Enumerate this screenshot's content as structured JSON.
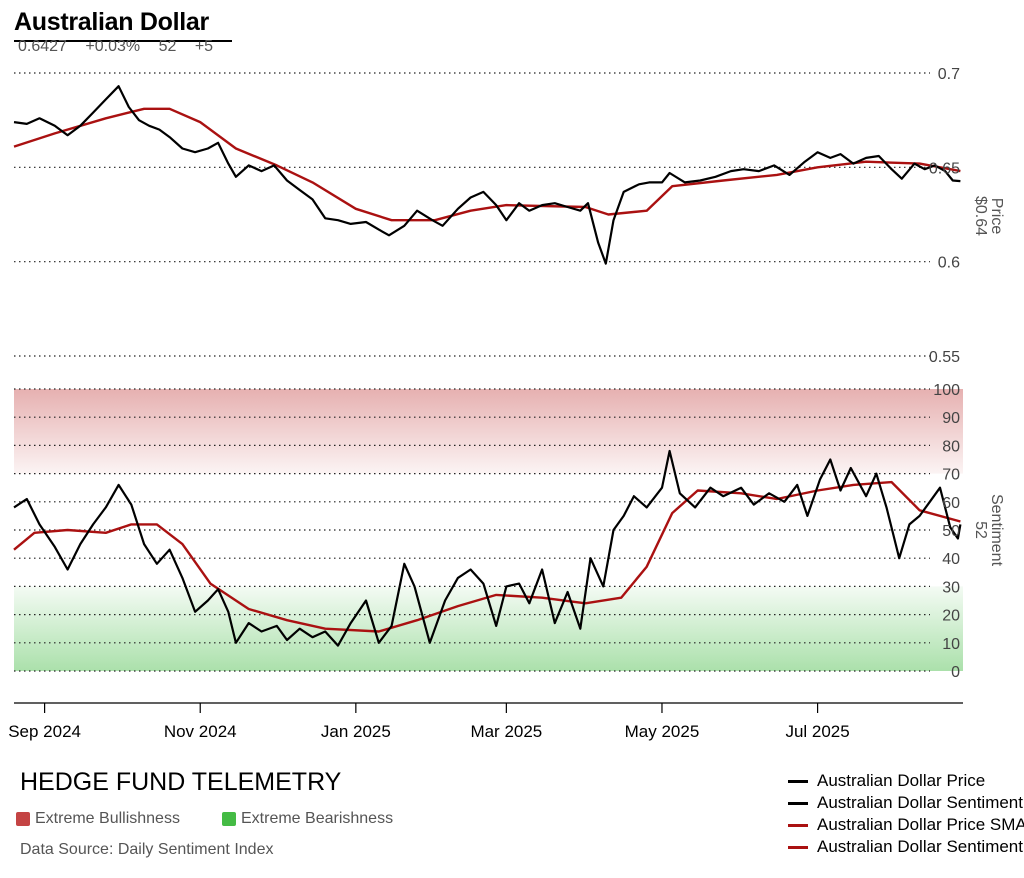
{
  "header": {
    "title": "Australian Dollar",
    "last_price": "0.6427",
    "change_pct": "+0.03%",
    "sentiment": "52",
    "sentiment_change": "+5"
  },
  "footer": {
    "brand": "HEDGE FUND TELEMETRY",
    "bull_zone_label": "Extreme Bullishness",
    "bear_zone_label": "Extreme Bearishness",
    "source": "Data Source: Daily Sentiment Index"
  },
  "colors": {
    "price": "#000000",
    "sentiment": "#000000",
    "price_sma": "#aa1111",
    "sentiment_sma": "#aa1111",
    "bull_zone": "#c44444",
    "bear_zone": "#44bb44"
  },
  "chart_data": [
    {
      "type": "line",
      "title": "Australian Dollar",
      "ylabel": "Price",
      "ylabel_value": "$0.64",
      "ylim": [
        0.55,
        0.7
      ],
      "yticks": [
        0.55,
        0.6,
        0.65,
        0.7
      ],
      "ytick_labels": [
        "0.55",
        "0.6",
        "0.65",
        "0.7"
      ],
      "xlim": [
        "2024-08-20",
        "2025-08-27"
      ],
      "xticks": [
        "2024-09-01",
        "2024-11-01",
        "2025-01-01",
        "2025-03-01",
        "2025-05-01",
        "2025-07-01"
      ],
      "xtick_labels": [
        "Sep 2024",
        "Nov 2024",
        "Jan 2025",
        "Mar 2025",
        "May 2025",
        "Jul 2025"
      ],
      "grid": "horizontal dotted",
      "series": [
        {
          "name": "Australian Dollar Price",
          "color": "#000000",
          "points": [
            [
              "2024-08-20",
              0.674
            ],
            [
              "2024-08-25",
              0.673
            ],
            [
              "2024-08-30",
              0.676
            ],
            [
              "2024-09-05",
              0.672
            ],
            [
              "2024-09-10",
              0.667
            ],
            [
              "2024-09-15",
              0.672
            ],
            [
              "2024-09-20",
              0.679
            ],
            [
              "2024-09-25",
              0.686
            ],
            [
              "2024-09-30",
              0.693
            ],
            [
              "2024-10-04",
              0.682
            ],
            [
              "2024-10-08",
              0.675
            ],
            [
              "2024-10-12",
              0.672
            ],
            [
              "2024-10-16",
              0.67
            ],
            [
              "2024-10-20",
              0.666
            ],
            [
              "2024-10-25",
              0.66
            ],
            [
              "2024-10-30",
              0.658
            ],
            [
              "2024-11-04",
              0.66
            ],
            [
              "2024-11-08",
              0.663
            ],
            [
              "2024-11-12",
              0.652
            ],
            [
              "2024-11-15",
              0.645
            ],
            [
              "2024-11-20",
              0.651
            ],
            [
              "2024-11-25",
              0.648
            ],
            [
              "2024-11-30",
              0.651
            ],
            [
              "2024-12-05",
              0.643
            ],
            [
              "2024-12-10",
              0.638
            ],
            [
              "2024-12-15",
              0.633
            ],
            [
              "2024-12-20",
              0.623
            ],
            [
              "2024-12-25",
              0.622
            ],
            [
              "2024-12-30",
              0.62
            ],
            [
              "2025-01-05",
              0.621
            ],
            [
              "2025-01-10",
              0.617
            ],
            [
              "2025-01-14",
              0.614
            ],
            [
              "2025-01-20",
              0.619
            ],
            [
              "2025-01-25",
              0.627
            ],
            [
              "2025-01-31",
              0.622
            ],
            [
              "2025-02-04",
              0.619
            ],
            [
              "2025-02-10",
              0.628
            ],
            [
              "2025-02-15",
              0.634
            ],
            [
              "2025-02-20",
              0.637
            ],
            [
              "2025-02-25",
              0.63
            ],
            [
              "2025-03-01",
              0.622
            ],
            [
              "2025-03-06",
              0.631
            ],
            [
              "2025-03-10",
              0.627
            ],
            [
              "2025-03-15",
              0.63
            ],
            [
              "2025-03-20",
              0.631
            ],
            [
              "2025-03-25",
              0.629
            ],
            [
              "2025-03-30",
              0.627
            ],
            [
              "2025-04-02",
              0.631
            ],
            [
              "2025-04-06",
              0.61
            ],
            [
              "2025-04-09",
              0.599
            ],
            [
              "2025-04-12",
              0.622
            ],
            [
              "2025-04-16",
              0.637
            ],
            [
              "2025-04-22",
              0.641
            ],
            [
              "2025-04-26",
              0.642
            ],
            [
              "2025-05-01",
              0.642
            ],
            [
              "2025-05-04",
              0.647
            ],
            [
              "2025-05-10",
              0.642
            ],
            [
              "2025-05-16",
              0.643
            ],
            [
              "2025-05-22",
              0.645
            ],
            [
              "2025-05-28",
              0.648
            ],
            [
              "2025-06-02",
              0.649
            ],
            [
              "2025-06-08",
              0.648
            ],
            [
              "2025-06-14",
              0.651
            ],
            [
              "2025-06-20",
              0.646
            ],
            [
              "2025-06-26",
              0.653
            ],
            [
              "2025-07-01",
              0.658
            ],
            [
              "2025-07-06",
              0.655
            ],
            [
              "2025-07-10",
              0.657
            ],
            [
              "2025-07-15",
              0.652
            ],
            [
              "2025-07-20",
              0.655
            ],
            [
              "2025-07-25",
              0.656
            ],
            [
              "2025-07-30",
              0.649
            ],
            [
              "2025-08-03",
              0.644
            ],
            [
              "2025-08-08",
              0.652
            ],
            [
              "2025-08-12",
              0.649
            ],
            [
              "2025-08-16",
              0.651
            ],
            [
              "2025-08-20",
              0.648
            ],
            [
              "2025-08-23",
              0.643
            ],
            [
              "2025-08-26",
              0.6427
            ]
          ]
        },
        {
          "name": "Australian Dollar Price SMA",
          "color": "#aa1111",
          "points": [
            [
              "2024-08-20",
              0.661
            ],
            [
              "2024-09-05",
              0.668
            ],
            [
              "2024-09-25",
              0.676
            ],
            [
              "2024-10-10",
              0.681
            ],
            [
              "2024-10-20",
              0.681
            ],
            [
              "2024-11-01",
              0.674
            ],
            [
              "2024-11-15",
              0.66
            ],
            [
              "2024-12-01",
              0.651
            ],
            [
              "2024-12-15",
              0.642
            ],
            [
              "2025-01-01",
              0.628
            ],
            [
              "2025-01-15",
              0.622
            ],
            [
              "2025-02-01",
              0.622
            ],
            [
              "2025-02-15",
              0.627
            ],
            [
              "2025-03-01",
              0.63
            ],
            [
              "2025-04-01",
              0.629
            ],
            [
              "2025-04-10",
              0.625
            ],
            [
              "2025-04-25",
              0.627
            ],
            [
              "2025-05-05",
              0.64
            ],
            [
              "2025-05-25",
              0.643
            ],
            [
              "2025-06-15",
              0.646
            ],
            [
              "2025-07-01",
              0.65
            ],
            [
              "2025-07-20",
              0.653
            ],
            [
              "2025-08-10",
              0.652
            ],
            [
              "2025-08-26",
              0.648
            ]
          ]
        }
      ]
    },
    {
      "type": "line",
      "title": "Australian Dollar Sentiment",
      "ylabel": "Sentiment",
      "ylabel_value": "52",
      "ylim": [
        0,
        100
      ],
      "yticks": [
        0,
        10,
        20,
        30,
        40,
        50,
        60,
        70,
        80,
        90,
        100
      ],
      "ytick_labels": [
        "0",
        "10",
        "20",
        "30",
        "40",
        "50",
        "60",
        "70",
        "80",
        "90",
        "100"
      ],
      "zones": [
        {
          "label": "Extreme Bullishness",
          "range": [
            70,
            100
          ],
          "color": "#c44444"
        },
        {
          "label": "Extreme Bearishness",
          "range": [
            0,
            30
          ],
          "color": "#44bb44"
        }
      ],
      "series": [
        {
          "name": "Australian Dollar Sentiment",
          "color": "#000000",
          "points": [
            [
              "2024-08-20",
              58
            ],
            [
              "2024-08-25",
              61
            ],
            [
              "2024-08-30",
              52
            ],
            [
              "2024-09-05",
              44
            ],
            [
              "2024-09-10",
              36
            ],
            [
              "2024-09-15",
              45
            ],
            [
              "2024-09-20",
              52
            ],
            [
              "2024-09-25",
              58
            ],
            [
              "2024-09-30",
              66
            ],
            [
              "2024-10-05",
              59
            ],
            [
              "2024-10-10",
              45
            ],
            [
              "2024-10-15",
              38
            ],
            [
              "2024-10-20",
              43
            ],
            [
              "2024-10-25",
              33
            ],
            [
              "2024-10-30",
              21
            ],
            [
              "2024-11-04",
              25
            ],
            [
              "2024-11-08",
              29
            ],
            [
              "2024-11-12",
              21
            ],
            [
              "2024-11-15",
              10
            ],
            [
              "2024-11-20",
              17
            ],
            [
              "2024-11-25",
              14
            ],
            [
              "2024-12-01",
              16
            ],
            [
              "2024-12-05",
              11
            ],
            [
              "2024-12-10",
              15
            ],
            [
              "2024-12-15",
              12
            ],
            [
              "2024-12-20",
              14
            ],
            [
              "2024-12-25",
              9
            ],
            [
              "2024-12-30",
              17
            ],
            [
              "2025-01-05",
              25
            ],
            [
              "2025-01-10",
              10
            ],
            [
              "2025-01-15",
              16
            ],
            [
              "2025-01-20",
              38
            ],
            [
              "2025-01-24",
              30
            ],
            [
              "2025-01-30",
              10
            ],
            [
              "2025-02-05",
              25
            ],
            [
              "2025-02-10",
              33
            ],
            [
              "2025-02-15",
              36
            ],
            [
              "2025-02-20",
              31
            ],
            [
              "2025-02-25",
              16
            ],
            [
              "2025-03-01",
              30
            ],
            [
              "2025-03-06",
              31
            ],
            [
              "2025-03-10",
              24
            ],
            [
              "2025-03-15",
              36
            ],
            [
              "2025-03-20",
              17
            ],
            [
              "2025-03-25",
              28
            ],
            [
              "2025-03-30",
              15
            ],
            [
              "2025-04-03",
              40
            ],
            [
              "2025-04-08",
              30
            ],
            [
              "2025-04-12",
              50
            ],
            [
              "2025-04-16",
              55
            ],
            [
              "2025-04-20",
              62
            ],
            [
              "2025-04-25",
              58
            ],
            [
              "2025-05-01",
              65
            ],
            [
              "2025-05-04",
              78
            ],
            [
              "2025-05-08",
              63
            ],
            [
              "2025-05-14",
              58
            ],
            [
              "2025-05-20",
              65
            ],
            [
              "2025-05-25",
              62
            ],
            [
              "2025-06-01",
              65
            ],
            [
              "2025-06-06",
              59
            ],
            [
              "2025-06-12",
              63
            ],
            [
              "2025-06-18",
              60
            ],
            [
              "2025-06-23",
              66
            ],
            [
              "2025-06-27",
              55
            ],
            [
              "2025-07-02",
              68
            ],
            [
              "2025-07-06",
              75
            ],
            [
              "2025-07-10",
              64
            ],
            [
              "2025-07-14",
              72
            ],
            [
              "2025-07-20",
              62
            ],
            [
              "2025-07-24",
              70
            ],
            [
              "2025-07-28",
              58
            ],
            [
              "2025-08-02",
              40
            ],
            [
              "2025-08-06",
              52
            ],
            [
              "2025-08-10",
              55
            ],
            [
              "2025-08-14",
              60
            ],
            [
              "2025-08-18",
              65
            ],
            [
              "2025-08-22",
              51
            ],
            [
              "2025-08-25",
              47
            ],
            [
              "2025-08-26",
              52
            ]
          ]
        },
        {
          "name": "Australian Dollar Sentiment SMA",
          "color": "#aa1111",
          "points": [
            [
              "2024-08-20",
              43
            ],
            [
              "2024-08-28",
              49
            ],
            [
              "2024-09-10",
              50
            ],
            [
              "2024-09-25",
              49
            ],
            [
              "2024-10-05",
              52
            ],
            [
              "2024-10-15",
              52
            ],
            [
              "2024-10-25",
              45
            ],
            [
              "2024-11-05",
              31
            ],
            [
              "2024-11-20",
              22
            ],
            [
              "2024-12-05",
              18
            ],
            [
              "2024-12-20",
              15
            ],
            [
              "2025-01-10",
              14
            ],
            [
              "2025-01-25",
              18
            ],
            [
              "2025-02-10",
              23
            ],
            [
              "2025-02-25",
              27
            ],
            [
              "2025-03-15",
              26
            ],
            [
              "2025-04-01",
              24
            ],
            [
              "2025-04-15",
              26
            ],
            [
              "2025-04-25",
              37
            ],
            [
              "2025-05-05",
              56
            ],
            [
              "2025-05-15",
              64
            ],
            [
              "2025-06-01",
              63
            ],
            [
              "2025-06-15",
              61
            ],
            [
              "2025-07-01",
              64
            ],
            [
              "2025-07-15",
              66
            ],
            [
              "2025-07-30",
              67
            ],
            [
              "2025-08-10",
              57
            ],
            [
              "2025-08-26",
              53
            ]
          ]
        }
      ]
    }
  ]
}
